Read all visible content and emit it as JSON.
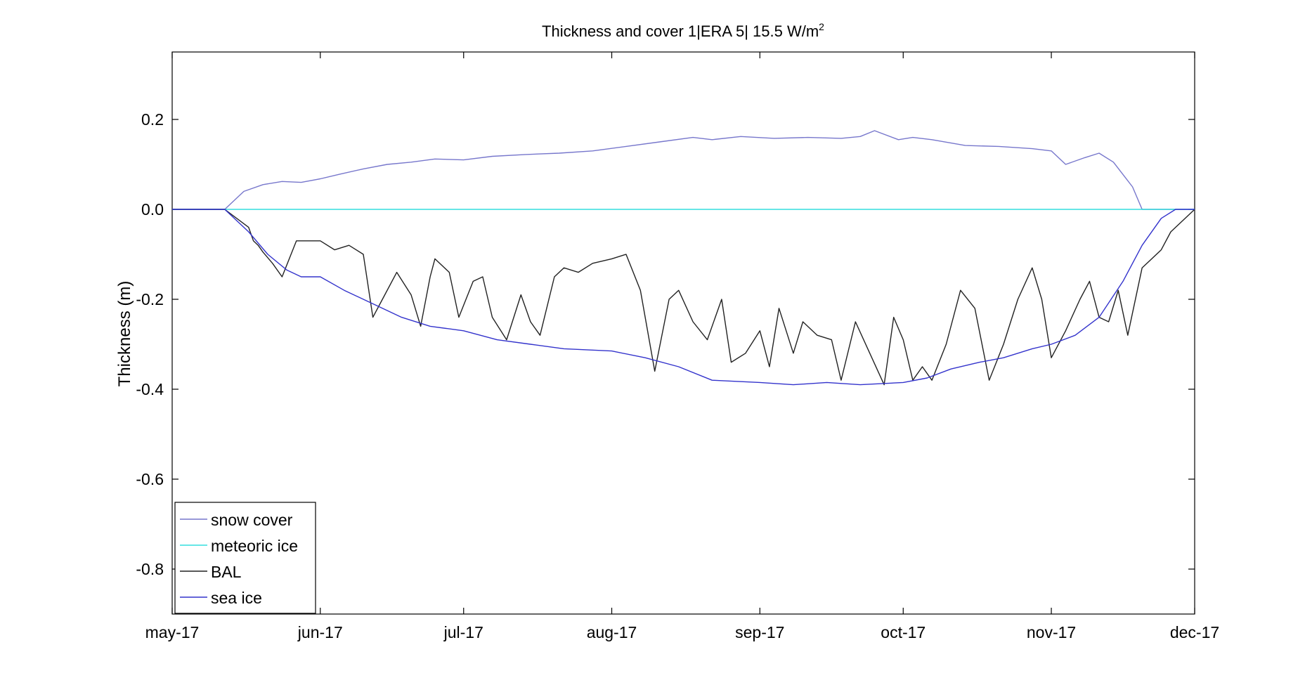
{
  "chart_data": {
    "type": "line",
    "title": "Thickness and cover 1|ERA 5| 15.5 W/m",
    "title_superscript": "2",
    "xlabel": "",
    "ylabel": "Thickness (m)",
    "xlim": [
      "2017-05-01",
      "2017-12-01"
    ],
    "ylim": [
      -0.9,
      0.35
    ],
    "grid": false,
    "legend_position": "bottom-left",
    "x_ticks": [
      {
        "date": "2017-05-01",
        "label": "may-17"
      },
      {
        "date": "2017-06-01",
        "label": "jun-17"
      },
      {
        "date": "2017-07-01",
        "label": "jul-17"
      },
      {
        "date": "2017-08-01",
        "label": "aug-17"
      },
      {
        "date": "2017-09-01",
        "label": "sep-17"
      },
      {
        "date": "2017-10-01",
        "label": "oct-17"
      },
      {
        "date": "2017-11-01",
        "label": "nov-17"
      },
      {
        "date": "2017-12-01",
        "label": "dec-17"
      }
    ],
    "y_ticks": [
      {
        "value": 0.2,
        "label": "0.2"
      },
      {
        "value": 0.0,
        "label": "0.0"
      },
      {
        "value": -0.2,
        "label": "-0.2"
      },
      {
        "value": -0.4,
        "label": "-0.4"
      },
      {
        "value": -0.6,
        "label": "-0.6"
      },
      {
        "value": -0.8,
        "label": "-0.8"
      }
    ],
    "series": [
      {
        "name": "snow cover",
        "color": "#7777cc",
        "x": [
          "2017-05-01",
          "2017-05-12",
          "2017-05-16",
          "2017-05-20",
          "2017-05-24",
          "2017-05-28",
          "2017-06-01",
          "2017-06-05",
          "2017-06-10",
          "2017-06-15",
          "2017-06-20",
          "2017-06-25",
          "2017-07-01",
          "2017-07-07",
          "2017-07-14",
          "2017-07-21",
          "2017-07-28",
          "2017-08-04",
          "2017-08-11",
          "2017-08-18",
          "2017-08-22",
          "2017-08-28",
          "2017-09-04",
          "2017-09-11",
          "2017-09-18",
          "2017-09-22",
          "2017-09-25",
          "2017-09-30",
          "2017-10-03",
          "2017-10-07",
          "2017-10-14",
          "2017-10-21",
          "2017-10-28",
          "2017-11-01",
          "2017-11-04",
          "2017-11-08",
          "2017-11-11",
          "2017-11-14",
          "2017-11-18",
          "2017-11-20",
          "2017-12-01"
        ],
        "y": [
          0.0,
          0.0,
          0.04,
          0.055,
          0.062,
          0.06,
          0.068,
          0.078,
          0.09,
          0.1,
          0.105,
          0.112,
          0.11,
          0.118,
          0.122,
          0.125,
          0.13,
          0.14,
          0.15,
          0.16,
          0.155,
          0.162,
          0.158,
          0.16,
          0.158,
          0.162,
          0.175,
          0.155,
          0.16,
          0.155,
          0.142,
          0.14,
          0.135,
          0.13,
          0.1,
          0.115,
          0.125,
          0.105,
          0.05,
          0.0,
          0.0
        ]
      },
      {
        "name": "meteoric ice",
        "color": "#33dddd",
        "x": [
          "2017-05-01",
          "2017-12-01"
        ],
        "y": [
          0.0,
          0.0
        ]
      },
      {
        "name": "BAL",
        "color": "#222222",
        "x": [
          "2017-05-01",
          "2017-05-12",
          "2017-05-17",
          "2017-05-18",
          "2017-05-19",
          "2017-05-20",
          "2017-05-22",
          "2017-05-24",
          "2017-05-27",
          "2017-06-01",
          "2017-06-04",
          "2017-06-07",
          "2017-06-10",
          "2017-06-12",
          "2017-06-14",
          "2017-06-17",
          "2017-06-20",
          "2017-06-22",
          "2017-06-24",
          "2017-06-25",
          "2017-06-28",
          "2017-06-30",
          "2017-07-03",
          "2017-07-05",
          "2017-07-07",
          "2017-07-10",
          "2017-07-13",
          "2017-07-15",
          "2017-07-17",
          "2017-07-20",
          "2017-07-22",
          "2017-07-25",
          "2017-07-28",
          "2017-08-01",
          "2017-08-04",
          "2017-08-07",
          "2017-08-10",
          "2017-08-13",
          "2017-08-15",
          "2017-08-18",
          "2017-08-21",
          "2017-08-24",
          "2017-08-26",
          "2017-08-29",
          "2017-09-01",
          "2017-09-03",
          "2017-09-05",
          "2017-09-08",
          "2017-09-10",
          "2017-09-13",
          "2017-09-16",
          "2017-09-18",
          "2017-09-21",
          "2017-09-24",
          "2017-09-27",
          "2017-09-29",
          "2017-10-01",
          "2017-10-03",
          "2017-10-05",
          "2017-10-07",
          "2017-10-10",
          "2017-10-13",
          "2017-10-16",
          "2017-10-19",
          "2017-10-22",
          "2017-10-25",
          "2017-10-28",
          "2017-10-30",
          "2017-11-01",
          "2017-11-04",
          "2017-11-07",
          "2017-11-09",
          "2017-11-11",
          "2017-11-13",
          "2017-11-15",
          "2017-11-17",
          "2017-11-20",
          "2017-11-24",
          "2017-11-26",
          "2017-12-01"
        ],
        "y": [
          0.0,
          0.0,
          -0.04,
          -0.07,
          -0.08,
          -0.095,
          -0.12,
          -0.15,
          -0.07,
          -0.07,
          -0.09,
          -0.08,
          -0.1,
          -0.24,
          -0.2,
          -0.14,
          -0.19,
          -0.26,
          -0.15,
          -0.11,
          -0.14,
          -0.24,
          -0.16,
          -0.15,
          -0.24,
          -0.29,
          -0.19,
          -0.25,
          -0.28,
          -0.15,
          -0.13,
          -0.14,
          -0.12,
          -0.11,
          -0.1,
          -0.18,
          -0.36,
          -0.2,
          -0.18,
          -0.25,
          -0.29,
          -0.2,
          -0.34,
          -0.32,
          -0.27,
          -0.35,
          -0.22,
          -0.32,
          -0.25,
          -0.28,
          -0.29,
          -0.38,
          -0.25,
          -0.32,
          -0.39,
          -0.24,
          -0.29,
          -0.38,
          -0.35,
          -0.38,
          -0.3,
          -0.18,
          -0.22,
          -0.38,
          -0.3,
          -0.2,
          -0.13,
          -0.2,
          -0.33,
          -0.27,
          -0.2,
          -0.16,
          -0.24,
          -0.25,
          -0.18,
          -0.28,
          -0.13,
          -0.09,
          -0.05,
          0.0
        ]
      },
      {
        "name": "sea ice",
        "color": "#3333cc",
        "x": [
          "2017-05-01",
          "2017-05-12",
          "2017-05-17",
          "2017-05-21",
          "2017-05-25",
          "2017-05-28",
          "2017-06-01",
          "2017-06-06",
          "2017-06-12",
          "2017-06-18",
          "2017-06-24",
          "2017-07-01",
          "2017-07-08",
          "2017-07-15",
          "2017-07-22",
          "2017-08-01",
          "2017-08-08",
          "2017-08-15",
          "2017-08-22",
          "2017-09-01",
          "2017-09-08",
          "2017-09-15",
          "2017-09-22",
          "2017-10-01",
          "2017-10-06",
          "2017-10-11",
          "2017-10-17",
          "2017-10-22",
          "2017-10-28",
          "2017-11-01",
          "2017-11-06",
          "2017-11-11",
          "2017-11-16",
          "2017-11-20",
          "2017-11-24",
          "2017-11-27",
          "2017-12-01"
        ],
        "y": [
          0.0,
          0.0,
          -0.05,
          -0.1,
          -0.135,
          -0.15,
          -0.15,
          -0.18,
          -0.21,
          -0.24,
          -0.26,
          -0.27,
          -0.29,
          -0.3,
          -0.31,
          -0.315,
          -0.33,
          -0.35,
          -0.38,
          -0.385,
          -0.39,
          -0.385,
          -0.39,
          -0.385,
          -0.375,
          -0.355,
          -0.34,
          -0.33,
          -0.31,
          -0.3,
          -0.28,
          -0.24,
          -0.16,
          -0.08,
          -0.02,
          0.0,
          0.0
        ]
      }
    ]
  }
}
